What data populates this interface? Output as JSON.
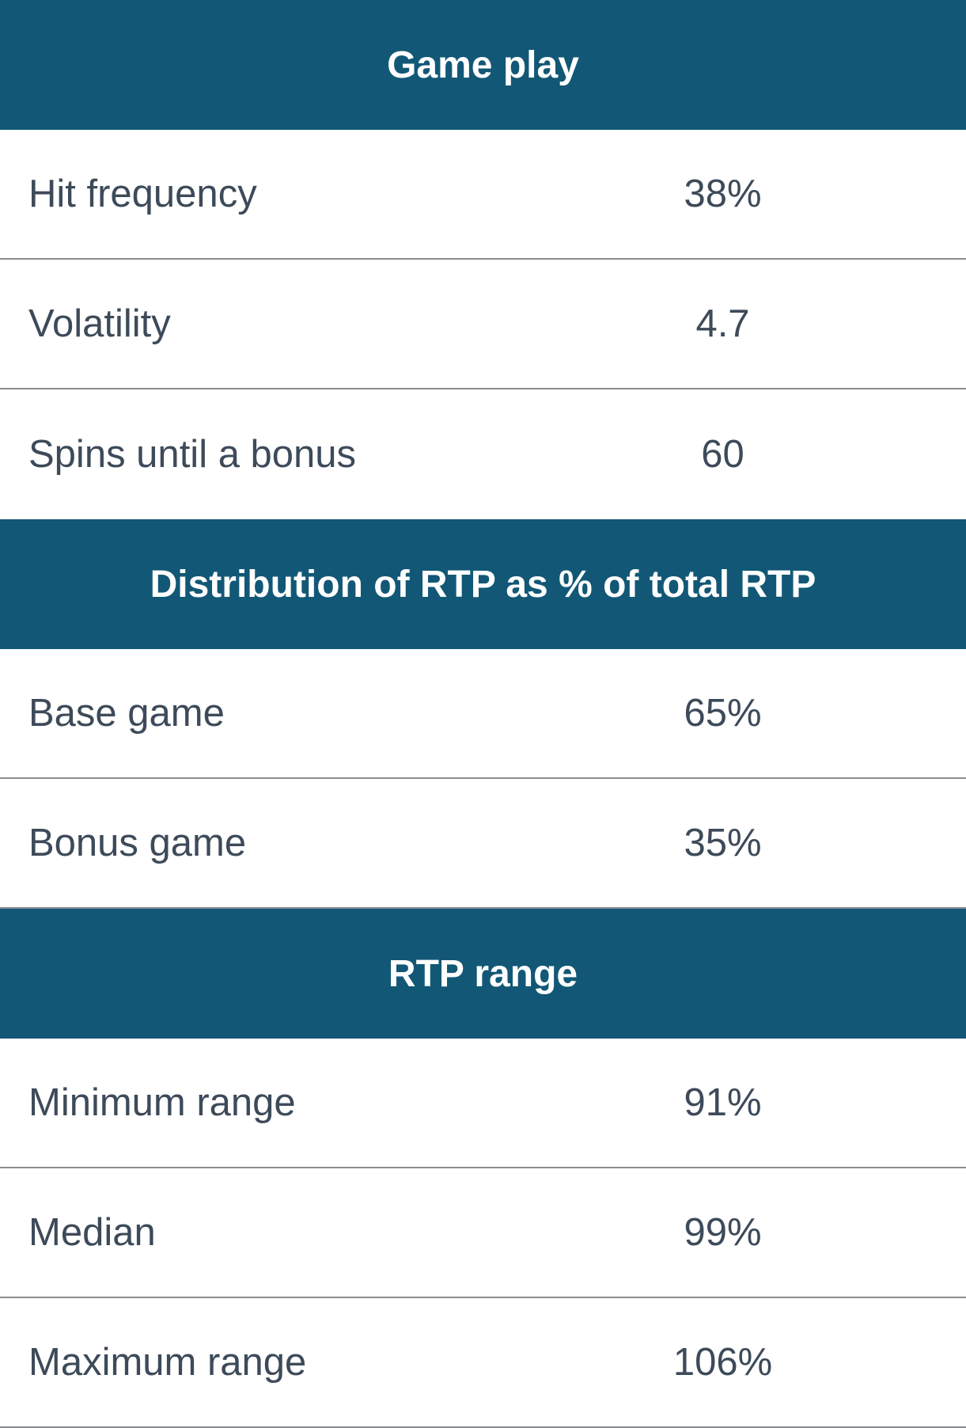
{
  "colors": {
    "header_background": "#125876",
    "header_text": "#ffffff",
    "row_text": "#3d4a59",
    "divider": "#8a8d90"
  },
  "sections": [
    {
      "title": "Game play",
      "rows": [
        {
          "label": "Hit frequency",
          "value": "38%"
        },
        {
          "label": "Volatility",
          "value": "4.7"
        },
        {
          "label": "Spins until a bonus",
          "value": "60"
        }
      ]
    },
    {
      "title": "Distribution of RTP as % of total RTP",
      "rows": [
        {
          "label": "Base game",
          "value": "65%"
        },
        {
          "label": "Bonus game",
          "value": "35%"
        }
      ]
    },
    {
      "title": "RTP range",
      "rows": [
        {
          "label": "Minimum range",
          "value": "91%"
        },
        {
          "label": "Median",
          "value": "99%"
        },
        {
          "label": "Maximum range",
          "value": "106%"
        }
      ]
    }
  ]
}
